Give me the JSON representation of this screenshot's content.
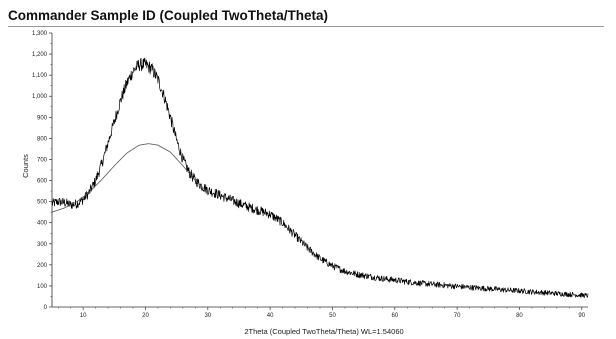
{
  "chart_data": {
    "type": "line",
    "title": "Commander Sample ID (Coupled TwoTheta/Theta)",
    "xlabel": "2Theta (Coupled TwoTheta/Theta) WL=1.54060",
    "ylabel": "Counts",
    "xlim": [
      5,
      91
    ],
    "ylim": [
      0,
      1300
    ],
    "xticks": [
      10,
      20,
      30,
      40,
      50,
      60,
      70,
      80,
      90
    ],
    "yticks": [
      0,
      100,
      200,
      300,
      400,
      500,
      600,
      700,
      800,
      900,
      1000,
      1100,
      1200,
      1300
    ],
    "ytick_labels": [
      "0",
      "100",
      "200",
      "300",
      "400",
      "500",
      "600",
      "700",
      "800",
      "900",
      "1,000",
      "1,100",
      "1,200",
      "1,300"
    ],
    "grid": false,
    "legend": "none",
    "series": [
      {
        "color": "#000000",
        "x": [
          5,
          6,
          7,
          8,
          9,
          10,
          11,
          12,
          13,
          14,
          15,
          16,
          17,
          18,
          19,
          20,
          21,
          22,
          23,
          24,
          25,
          26,
          27,
          28,
          29,
          30,
          32,
          34,
          36,
          38,
          40,
          42,
          44,
          46,
          48,
          50,
          52,
          54,
          56,
          58,
          60,
          62,
          64,
          66,
          68,
          70,
          72,
          74,
          76,
          78,
          80,
          82,
          84,
          86,
          88,
          90,
          91
        ],
        "values": [
          490,
          500,
          495,
          485,
          490,
          510,
          545,
          600,
          680,
          780,
          880,
          980,
          1060,
          1120,
          1150,
          1150,
          1130,
          1080,
          1000,
          900,
          790,
          700,
          640,
          600,
          575,
          555,
          530,
          505,
          480,
          460,
          440,
          400,
          340,
          280,
          230,
          195,
          170,
          155,
          145,
          135,
          128,
          120,
          113,
          108,
          103,
          98,
          93,
          89,
          85,
          80,
          77,
          72,
          68,
          64,
          60,
          56,
          54
        ]
      },
      {
        "color": "#555555",
        "x": [
          5,
          7,
          9,
          11,
          13,
          15,
          17,
          19,
          20.5,
          22,
          24,
          26,
          28,
          30
        ],
        "values": [
          450,
          470,
          500,
          545,
          605,
          670,
          730,
          768,
          775,
          768,
          735,
          670,
          600,
          545
        ]
      }
    ]
  }
}
